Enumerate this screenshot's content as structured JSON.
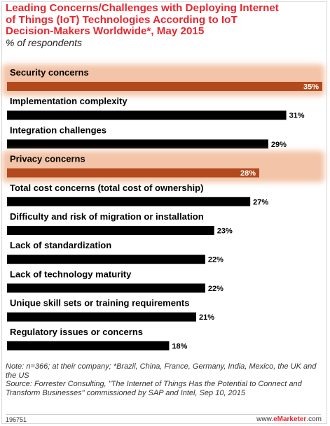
{
  "header": {
    "title": "Leading Concerns/Challenges with Deploying Internet\nof Things (IoT) Technologies According to IoT\nDecision-Makers Worldwide*, May 2015",
    "subtitle": "% of respondents"
  },
  "colors": {
    "title": "#e8262e",
    "bar_default": "#000000",
    "bar_highlight": "#b24a1e",
    "highlight_glow": "#f3c4a7"
  },
  "chart_data": {
    "type": "bar",
    "orientation": "horizontal",
    "unit": "%",
    "title": "Leading Concerns/Challenges with Deploying Internet of Things (IoT) Technologies According to IoT Decision-Makers Worldwide*, May 2015",
    "subtitle": "% of respondents",
    "xlim": [
      0,
      35
    ],
    "grid": false,
    "legend": "none",
    "categories": [
      "Security concerns",
      "Implementation complexity",
      "Integration challenges",
      "Privacy concerns",
      "Total cost concerns (total cost of ownership)",
      "Difficulty and risk of migration or installation",
      "Lack of standardization",
      "Lack of technology maturity",
      "Unique skill sets or training requirements",
      "Regulatory issues or concerns"
    ],
    "values": [
      35,
      31,
      29,
      28,
      27,
      23,
      22,
      22,
      21,
      18
    ],
    "value_labels": [
      "35%",
      "31%",
      "29%",
      "28%",
      "27%",
      "23%",
      "22%",
      "22%",
      "21%",
      "18%"
    ],
    "highlighted": [
      true,
      false,
      false,
      true,
      false,
      false,
      false,
      false,
      false,
      false
    ]
  },
  "footer": {
    "note": "Note: n=366; at their company; *Brazil, China, France, Germany, India, Mexico, the UK and the US",
    "source": "Source: Forrester Consulting, \"The Internet of Things Has the Potential to Connect and Transform Businesses\" commissioned by SAP and Intel, Sep 10, 2015",
    "chart_id": "196751",
    "site_prefix": "www.",
    "site_brand": "eMarketer",
    "site_suffix": ".com"
  }
}
